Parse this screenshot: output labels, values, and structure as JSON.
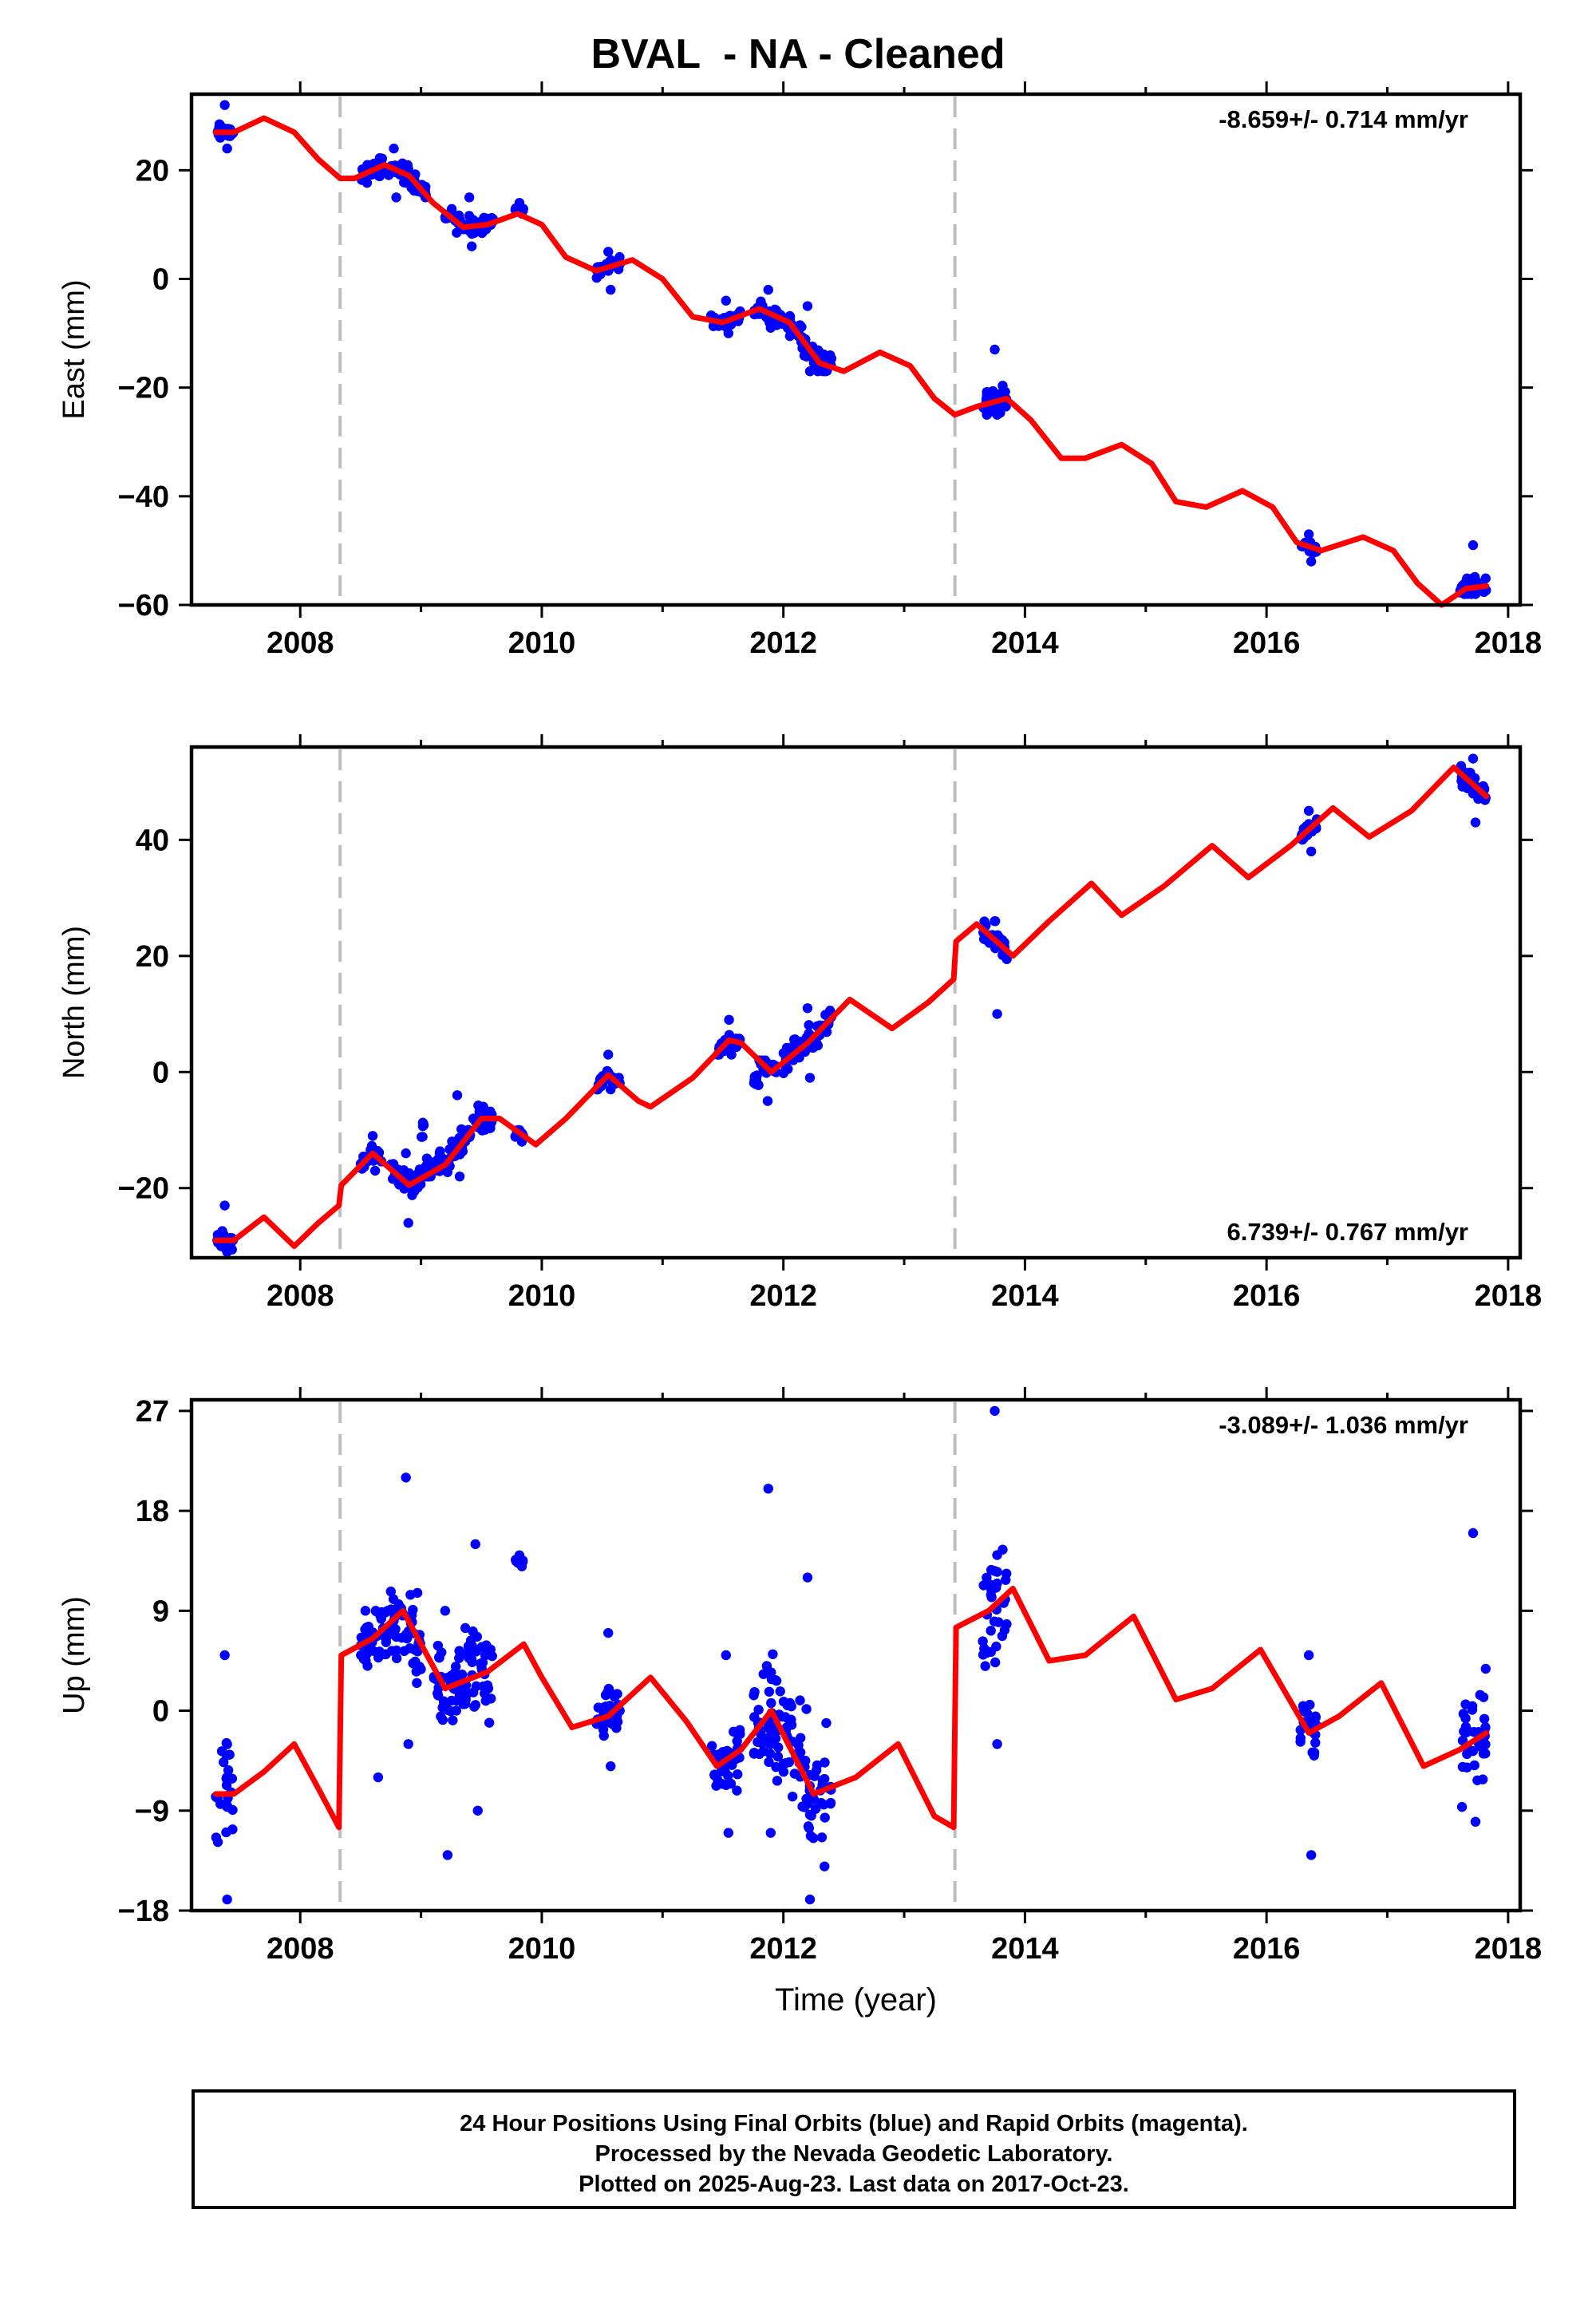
{
  "title": "BVAL  - NA - Cleaned",
  "colors": {
    "data_points": "#0000ff",
    "model_line": "#ff0000",
    "event_lines": "#bdbdbd",
    "frame": "#000000"
  },
  "footer": {
    "line1": "24 Hour Positions Using Final Orbits (blue) and Rapid Orbits (magenta).",
    "line2": "Processed by the Nevada Geodetic Laboratory.",
    "line3": "Plotted on 2025-Aug-23. Last data on 2017-Oct-23."
  },
  "chart_data": [
    {
      "type": "scatter",
      "ylabel": "East (mm)",
      "xlabel": "",
      "xlim": [
        2007.1,
        2018.1
      ],
      "ylim": [
        -60,
        34
      ],
      "xticks": [
        2008,
        2010,
        2012,
        2014,
        2016,
        2018
      ],
      "yticks": [
        -60,
        -40,
        -20,
        0,
        20
      ],
      "velocity_label": "-8.659+/- 0.714 mm/yr",
      "velocity": -8.659,
      "legend_position": "top-right",
      "event_lines": [
        2008.33,
        2013.42
      ],
      "clusters": [
        {
          "x": [
            2007.3,
            2007.45
          ],
          "y": [
            24,
            32
          ]
        },
        {
          "x": [
            2008.5,
            2009.05
          ],
          "y": [
            15,
            24
          ]
        },
        {
          "x": [
            2009.2,
            2009.6
          ],
          "y": [
            6,
            15
          ]
        },
        {
          "x": [
            2009.78,
            2009.85
          ],
          "y": [
            12,
            14
          ]
        },
        {
          "x": [
            2010.45,
            2010.65
          ],
          "y": [
            -2,
            5
          ]
        },
        {
          "x": [
            2011.4,
            2011.65
          ],
          "y": [
            -10,
            -4
          ]
        },
        {
          "x": [
            2011.75,
            2012.0
          ],
          "y": [
            -9,
            -2
          ]
        },
        {
          "x": [
            2012.0,
            2012.4
          ],
          "y": [
            -17,
            -5
          ]
        },
        {
          "x": [
            2013.65,
            2013.85
          ],
          "y": [
            -25,
            -13
          ]
        },
        {
          "x": [
            2016.28,
            2016.42
          ],
          "y": [
            -52,
            -47
          ]
        },
        {
          "x": [
            2017.6,
            2017.82
          ],
          "y": [
            -58,
            -49
          ]
        }
      ],
      "model": {
        "x": [
          2007.3,
          2007.45,
          2007.7,
          2007.95,
          2008.15,
          2008.33,
          2008.45,
          2008.7,
          2008.9,
          2009.1,
          2009.35,
          2009.55,
          2009.8,
          2010.0,
          2010.2,
          2010.45,
          2010.75,
          2011.0,
          2011.25,
          2011.5,
          2011.8,
          2012.05,
          2012.3,
          2012.5,
          2012.8,
          2013.05,
          2013.25,
          2013.42,
          2013.6,
          2013.85,
          2014.05,
          2014.3,
          2014.5,
          2014.8,
          2015.05,
          2015.25,
          2015.5,
          2015.8,
          2016.05,
          2016.25,
          2016.45,
          2016.8,
          2017.05,
          2017.25,
          2017.45,
          2017.65,
          2017.82
        ],
        "y": [
          27,
          27,
          29.6,
          27,
          22,
          18.5,
          18.5,
          21,
          19,
          14,
          9.5,
          10,
          12,
          10,
          4,
          1.5,
          3.5,
          0,
          -7,
          -8,
          -5.5,
          -8,
          -15.5,
          -17,
          -13.5,
          -16,
          -22,
          -25,
          -23.5,
          -22,
          -26,
          -33,
          -33,
          -30.5,
          -34,
          -41,
          -42,
          -39,
          -42,
          -48.5,
          -50,
          -47.5,
          -50,
          -56,
          -60,
          -57,
          -56.5
        ]
      }
    },
    {
      "type": "scatter",
      "ylabel": "North (mm)",
      "xlabel": "",
      "xlim": [
        2007.1,
        2018.1
      ],
      "ylim": [
        -32,
        56
      ],
      "xticks": [
        2008,
        2010,
        2012,
        2014,
        2016,
        2018
      ],
      "yticks": [
        -20,
        0,
        20,
        40
      ],
      "velocity_label": "6.739+/- 0.767 mm/yr",
      "velocity": 6.739,
      "legend_position": "bottom-right",
      "event_lines": [
        2008.33,
        2013.42
      ],
      "clusters": [
        {
          "x": [
            2007.3,
            2007.45
          ],
          "y": [
            -31,
            -23
          ]
        },
        {
          "x": [
            2008.5,
            2008.7
          ],
          "y": [
            -17,
            -11
          ]
        },
        {
          "x": [
            2008.75,
            2009.0
          ],
          "y": [
            -26,
            -14
          ]
        },
        {
          "x": [
            2009.0,
            2009.6
          ],
          "y": [
            -18,
            -4
          ]
        },
        {
          "x": [
            2009.78,
            2009.85
          ],
          "y": [
            -12,
            -10
          ]
        },
        {
          "x": [
            2010.45,
            2010.65
          ],
          "y": [
            -3,
            3
          ]
        },
        {
          "x": [
            2011.45,
            2011.65
          ],
          "y": [
            3,
            9
          ]
        },
        {
          "x": [
            2011.75,
            2011.95
          ],
          "y": [
            -5,
            2
          ]
        },
        {
          "x": [
            2012.0,
            2012.4
          ],
          "y": [
            -1,
            11
          ]
        },
        {
          "x": [
            2013.65,
            2013.85
          ],
          "y": [
            10,
            26
          ]
        },
        {
          "x": [
            2016.28,
            2016.42
          ],
          "y": [
            38,
            45
          ]
        },
        {
          "x": [
            2017.6,
            2017.82
          ],
          "y": [
            43,
            54
          ]
        }
      ],
      "model": {
        "x": [
          2007.3,
          2007.45,
          2007.7,
          2007.95,
          2008.15,
          2008.32,
          2008.34,
          2008.6,
          2008.9,
          2009.2,
          2009.5,
          2009.65,
          2009.95,
          2010.2,
          2010.55,
          2010.8,
          2010.9,
          2011.25,
          2011.55,
          2011.65,
          2011.9,
          2012.2,
          2012.55,
          2012.9,
          2013.2,
          2013.41,
          2013.43,
          2013.6,
          2013.9,
          2014.2,
          2014.55,
          2014.8,
          2015.15,
          2015.55,
          2015.85,
          2016.2,
          2016.55,
          2016.85,
          2017.2,
          2017.55,
          2017.82
        ],
        "y": [
          -29,
          -29,
          -25,
          -30,
          -26,
          -23,
          -19.5,
          -14,
          -19.5,
          -16,
          -8,
          -8,
          -12.5,
          -8,
          -0.5,
          -5,
          -6,
          -1,
          5.5,
          5,
          0,
          5,
          12.5,
          7.5,
          12,
          16,
          22.5,
          25.5,
          20,
          26,
          32.5,
          27,
          32,
          39,
          33.5,
          39,
          45.5,
          40.5,
          45,
          52.5,
          47.5
        ]
      }
    },
    {
      "type": "scatter",
      "ylabel": "Up (mm)",
      "xlabel": "Time (year)",
      "xlim": [
        2007.1,
        2018.1
      ],
      "ylim": [
        -18,
        28
      ],
      "xticks": [
        2008,
        2010,
        2012,
        2014,
        2016,
        2018
      ],
      "yticks": [
        -18,
        -9,
        0,
        9,
        18,
        27
      ],
      "velocity_label": "-3.089+/- 1.036 mm/yr",
      "velocity": -3.089,
      "legend_position": "top-right",
      "event_lines": [
        2008.33,
        2013.42
      ],
      "clusters": [
        {
          "x": [
            2007.3,
            2007.45
          ],
          "y": [
            -17,
            5
          ]
        },
        {
          "x": [
            2008.5,
            2008.75
          ],
          "y": [
            -6,
            9
          ]
        },
        {
          "x": [
            2008.75,
            2009.0
          ],
          "y": [
            -3,
            21
          ]
        },
        {
          "x": [
            2009.1,
            2009.3
          ],
          "y": [
            -13,
            9
          ]
        },
        {
          "x": [
            2009.3,
            2009.6
          ],
          "y": [
            -9,
            15
          ]
        },
        {
          "x": [
            2009.78,
            2009.85
          ],
          "y": [
            13,
            14
          ]
        },
        {
          "x": [
            2010.45,
            2010.65
          ],
          "y": [
            -5,
            7
          ]
        },
        {
          "x": [
            2011.4,
            2011.65
          ],
          "y": [
            -11,
            5
          ]
        },
        {
          "x": [
            2011.75,
            2012.0
          ],
          "y": [
            -11,
            20
          ]
        },
        {
          "x": [
            2012.0,
            2012.4
          ],
          "y": [
            -17,
            12
          ]
        },
        {
          "x": [
            2013.65,
            2013.85
          ],
          "y": [
            -3,
            27
          ]
        },
        {
          "x": [
            2016.28,
            2016.42
          ],
          "y": [
            -13,
            5
          ]
        },
        {
          "x": [
            2017.6,
            2017.82
          ],
          "y": [
            -10,
            16
          ]
        }
      ],
      "model": {
        "x": [
          2007.3,
          2007.45,
          2007.7,
          2007.95,
          2008.15,
          2008.32,
          2008.34,
          2008.6,
          2008.85,
          2009.1,
          2009.2,
          2009.55,
          2009.85,
          2010.0,
          2010.25,
          2010.55,
          2010.9,
          2011.2,
          2011.45,
          2011.65,
          2011.9,
          2012.25,
          2012.6,
          2012.95,
          2013.25,
          2013.41,
          2013.43,
          2013.7,
          2013.9,
          2014.2,
          2014.5,
          2014.9,
          2015.25,
          2015.55,
          2015.95,
          2016.35,
          2016.6,
          2016.95,
          2017.3,
          2017.6,
          2017.82
        ],
        "y": [
          -7.5,
          -7.5,
          -5.5,
          -3,
          -7,
          -10.5,
          5,
          6.5,
          9,
          4,
          2,
          3.5,
          6,
          3,
          -1.5,
          -0.5,
          3,
          -1,
          -5,
          -3.5,
          0,
          -7.5,
          -6,
          -3,
          -9.5,
          -10.5,
          7.5,
          9,
          11,
          4.5,
          5,
          8.5,
          1,
          2,
          5.5,
          -2,
          -0.5,
          2.5,
          -5,
          -3.5,
          -2
        ]
      }
    }
  ]
}
